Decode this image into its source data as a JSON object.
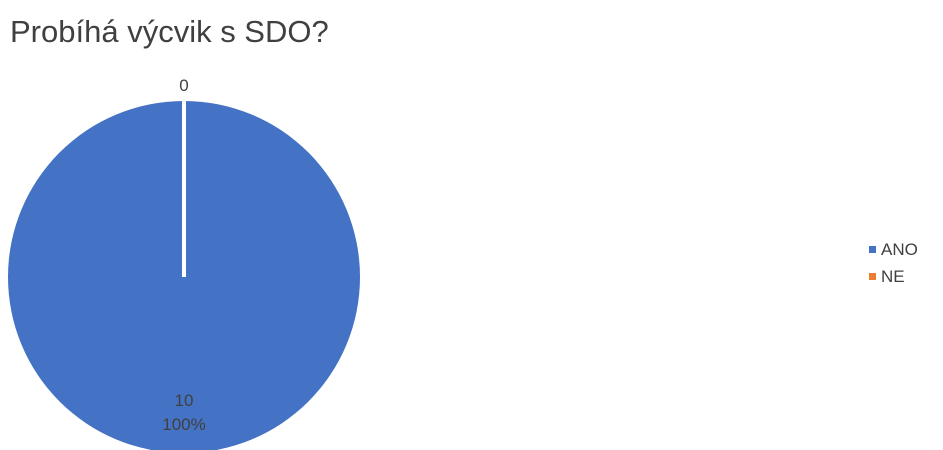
{
  "chart_data": {
    "type": "pie",
    "title": "Probíhá výcvik s SDO?",
    "categories": [
      "ANO",
      "NE"
    ],
    "values": [
      10,
      0
    ],
    "percent_labels": [
      "100%",
      ""
    ],
    "colors": [
      "#4472C4",
      "#ED7D31"
    ],
    "legend_position": "right"
  }
}
